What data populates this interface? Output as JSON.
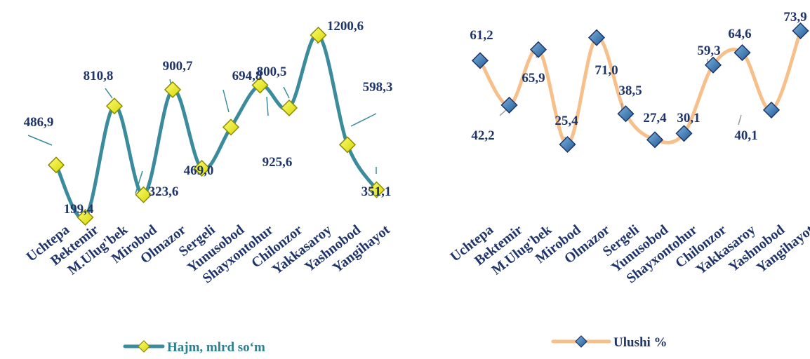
{
  "chart_data": [
    {
      "type": "line",
      "smooth": true,
      "categories": [
        "Uchtepa",
        "Bektemir",
        "M.Ulug'bek",
        "Mirobod",
        "Olmazor",
        "Sergeli",
        "Yunusobod",
        "Shayxontohur",
        "Chilonzor",
        "Yakkasaroy",
        "Yashnobod",
        "Yangihayot"
      ],
      "series": [
        {
          "name": "Hajm, mlrd so‘m",
          "values": [
            486.9,
            199.4,
            810.8,
            323.6,
            900.7,
            469.0,
            694.8,
            925.6,
            800.5,
            1200.6,
            598.3,
            351.1
          ],
          "value_labels": [
            "486,9",
            "199,4",
            "810,8",
            "323,6",
            "900,7",
            "469,0",
            "694,8",
            "925,6",
            "800,5",
            "1200,6",
            "598,3",
            "351,1"
          ]
        }
      ],
      "ylim": [
        0,
        1300
      ],
      "axes_visible": false,
      "grid": false,
      "legend": "bottom",
      "colors": {
        "line": "#3a8b9c",
        "marker_fill": "#f2f20a",
        "marker_edge": "#8c8c00",
        "label": "#1f3569",
        "legend_text": "#2e7f90"
      }
    },
    {
      "type": "line",
      "smooth": true,
      "categories": [
        "Uchtepa",
        "Bektemir",
        "M.Ulug'bek",
        "Mirobod",
        "Olmazor",
        "Sergeli",
        "Yunusobod",
        "Shayxontohur",
        "Chilonzor",
        "Yakkasaroy",
        "Yashnobod",
        "Yangihayot"
      ],
      "series": [
        {
          "name": "Ulushi %",
          "values": [
            61.2,
            42.2,
            65.9,
            25.4,
            71.0,
            38.5,
            27.4,
            30.1,
            59.3,
            64.6,
            40.1,
            73.9
          ],
          "value_labels": [
            "61,2",
            "42,2",
            "65,9",
            "25,4",
            "71,0",
            "38,5",
            "27,4",
            "30,1",
            "59,3",
            "64,6",
            "40,1",
            "73,9"
          ]
        }
      ],
      "ylim": [
        0,
        80
      ],
      "axes_visible": false,
      "grid": false,
      "legend": "bottom",
      "colors": {
        "line": "#f7c08a",
        "marker_fill": "#2f6fa8",
        "marker_edge": "#1f3569",
        "label": "#1f3569",
        "legend_text": "#1f3569"
      }
    }
  ]
}
